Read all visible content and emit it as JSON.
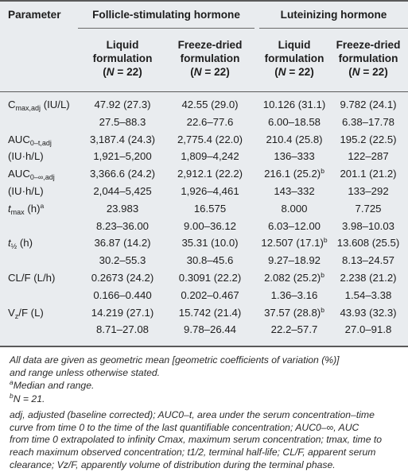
{
  "header": {
    "parameter": "Parameter",
    "fsh_group": "Follicle-stimulating hormone",
    "lh_group": "Luteinizing hormone",
    "col_liquid_1": "Liquid",
    "col_liquid_2": "formulation",
    "col_fd_1": "Freeze-dried",
    "col_fd_2": "formulation",
    "n_open": "(",
    "n_var": "N",
    "n_eq": " = 22)"
  },
  "rows": [
    {
      "param_main": "C",
      "param_sub": "max,adj",
      "param_rest": " (IU/L)",
      "fsh_liquid": "47.92 (27.3)",
      "fsh_fd": "42.55 (29.0)",
      "lh_liquid": "10.126 (31.1)",
      "lh_fd": "9.782 (24.1)"
    },
    {
      "param_main": "",
      "param_sub": "",
      "param_rest": "",
      "fsh_liquid": "27.5–88.3",
      "fsh_fd": "22.6–77.6",
      "lh_liquid": "6.00–18.58",
      "lh_fd": "6.38–17.78"
    },
    {
      "param_main": "AUC",
      "param_sub": "0–t,adj",
      "param_rest": "",
      "fsh_liquid": "3,187.4 (24.3)",
      "fsh_fd": "2,775.4 (22.0)",
      "lh_liquid": "210.4 (25.8)",
      "lh_fd": "195.2 (22.5)"
    },
    {
      "param_main": "(IU·h/L)",
      "param_sub": "",
      "param_rest": "",
      "fsh_liquid": "1,921–5,200",
      "fsh_fd": "1,809–4,242",
      "lh_liquid": "136–333",
      "lh_fd": "122–287"
    },
    {
      "param_main": "AUC",
      "param_sub": "0–∞,adj",
      "param_rest": "",
      "fsh_liquid": "3,366.6 (24.2)",
      "fsh_fd": "2,912.1 (22.2)",
      "lh_liquid": "216.1 (25.2)",
      "lh_liquid_sup": "b",
      "lh_fd": "201.1 (21.2)"
    },
    {
      "param_main": "(IU·h/L)",
      "param_sub": "",
      "param_rest": "",
      "fsh_liquid": "2,044–5,425",
      "fsh_fd": "1,926–4,461",
      "lh_liquid": "143–332",
      "lh_fd": "133–292"
    },
    {
      "param_main": "t",
      "param_sub": "max",
      "param_rest": " (h)",
      "param_sup": "a",
      "fsh_liquid": "23.983",
      "fsh_fd": "16.575",
      "lh_liquid": "8.000",
      "lh_fd": "7.725"
    },
    {
      "param_main": "",
      "param_sub": "",
      "param_rest": "",
      "fsh_liquid": "8.23–36.00",
      "fsh_fd": "9.00–36.12",
      "lh_liquid": "6.03–12.00",
      "lh_fd": "3.98–10.03"
    },
    {
      "param_main": "t",
      "param_sub": "½",
      "param_rest": " (h)",
      "fsh_liquid": "36.87 (14.2)",
      "fsh_fd": "35.31 (10.0)",
      "lh_liquid": "12.507 (17.1)",
      "lh_liquid_sup": "b",
      "lh_fd": "13.608 (25.5)"
    },
    {
      "param_main": "",
      "param_sub": "",
      "param_rest": "",
      "fsh_liquid": "30.2–55.3",
      "fsh_fd": "30.8–45.6",
      "lh_liquid": "9.27–18.92",
      "lh_fd": "8.13–24.57"
    },
    {
      "param_main": "CL/F (L/h)",
      "param_sub": "",
      "param_rest": "",
      "fsh_liquid": "0.2673 (24.2)",
      "fsh_fd": "0.3091 (22.2)",
      "lh_liquid": "2.082 (25.2)",
      "lh_liquid_sup": "b",
      "lh_fd": "2.238 (21.2)"
    },
    {
      "param_main": "",
      "param_sub": "",
      "param_rest": "",
      "fsh_liquid": "0.166–0.440",
      "fsh_fd": "0.202–0.467",
      "lh_liquid": "1.36–3.16",
      "lh_fd": "1.54–3.38"
    },
    {
      "param_main": "V",
      "param_sub": "z",
      "param_rest": "/F (L)",
      "fsh_liquid": "14.219 (27.1)",
      "fsh_fd": "15.742 (21.4)",
      "lh_liquid": "37.57 (28.8)",
      "lh_liquid_sup": "b",
      "lh_fd": "43.93 (32.3)"
    },
    {
      "param_main": "",
      "param_sub": "",
      "param_rest": "",
      "fsh_liquid": "8.71–27.08",
      "fsh_fd": "9.78–26.44",
      "lh_liquid": "22.2–57.7",
      "lh_fd": "27.0–91.8"
    }
  ],
  "footnotes": {
    "general_1": "All data are given as geometric mean [geometric coefficients of variation (%)]",
    "general_2": "and range unless otherwise stated.",
    "a_mark": "a",
    "a_text": "Median and range.",
    "b_mark": "b",
    "b_text": "N = 21.",
    "abbrev_1": "adj, adjusted (baseline corrected); AUC0–t, area under the serum concentration–time",
    "abbrev_2": "curve from time 0 to the time of the last quantifiable concentration; AUC0–∞, AUC",
    "abbrev_3": "from time 0 extrapolated to infinity Cmax, maximum serum concentration; tmax, time to",
    "abbrev_4": "reach maximum observed concentration; t1/2, terminal half-life; CL/F, apparent serum",
    "abbrev_5": "clearance; Vz/F, apparently volume of distribution during the terminal phase."
  },
  "colors": {
    "table_bg": "#e9ecef",
    "rule": "#5a5a5a",
    "text": "#1d1d1d"
  }
}
